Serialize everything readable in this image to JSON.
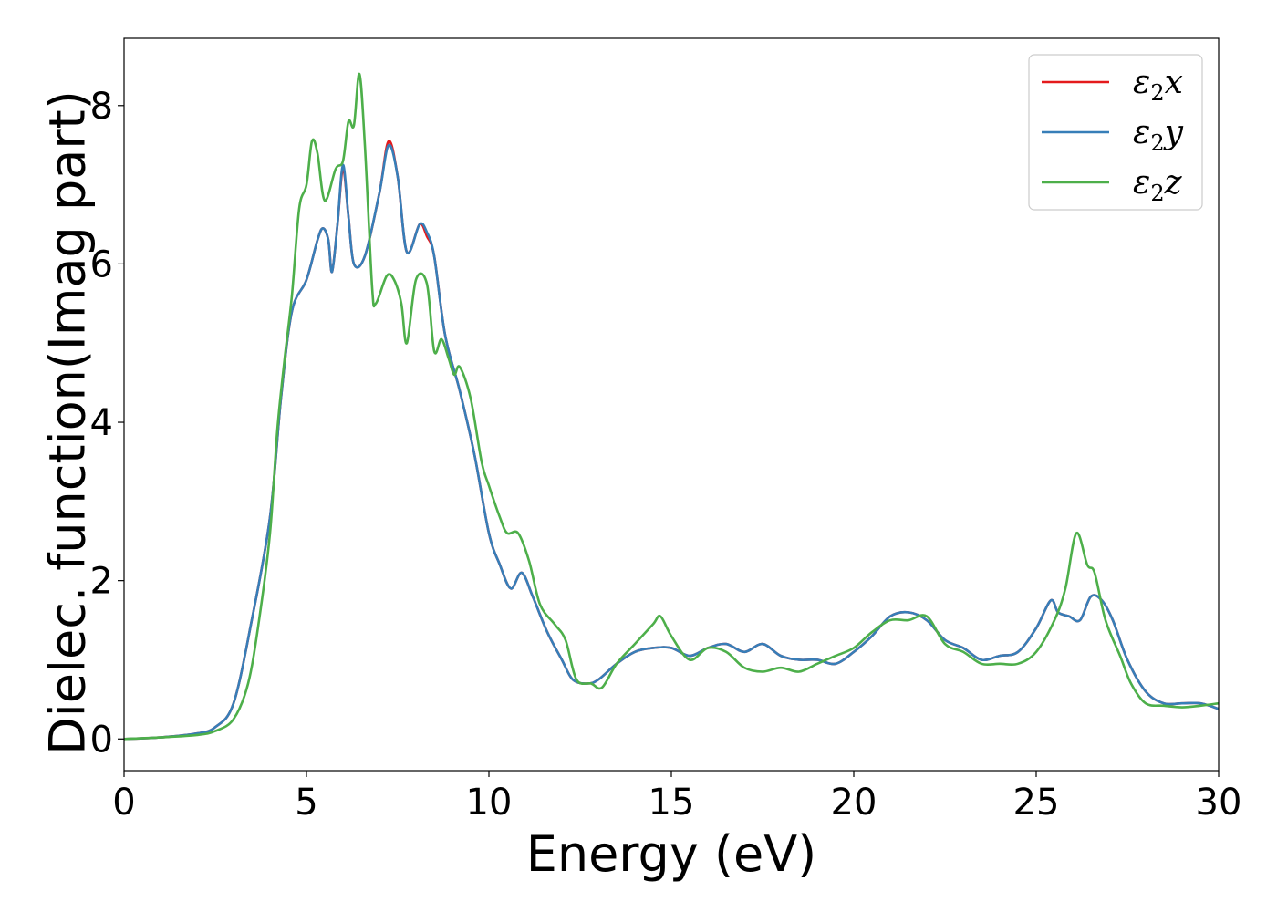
{
  "chart_data": {
    "type": "line",
    "xlabel": "Energy (eV)",
    "ylabel": "Dielec. function(Imag part)",
    "xlim": [
      0,
      30
    ],
    "ylim": [
      -0.4,
      8.85
    ],
    "x_ticks": [
      "0",
      "5",
      "10",
      "15",
      "20",
      "25",
      "30"
    ],
    "y_ticks": [
      "0",
      "2",
      "4",
      "6",
      "8"
    ],
    "x_tick_values": [
      0,
      5,
      10,
      15,
      20,
      25,
      30
    ],
    "y_tick_values": [
      0,
      2,
      4,
      6,
      8
    ],
    "grid": false,
    "legend_position": "top-right",
    "series": [
      {
        "name": "ε₂x",
        "legend": {
          "symbol": "ε",
          "sub": "2",
          "axis": "x"
        },
        "color": "#e41a1c",
        "points": [
          [
            0,
            0
          ],
          [
            1,
            0.02
          ],
          [
            2,
            0.07
          ],
          [
            2.5,
            0.15
          ],
          [
            3,
            0.45
          ],
          [
            3.5,
            1.5
          ],
          [
            4,
            2.8
          ],
          [
            4.3,
            4.3
          ],
          [
            4.6,
            5.4
          ],
          [
            5,
            5.8
          ],
          [
            5.3,
            6.3
          ],
          [
            5.45,
            6.45
          ],
          [
            5.6,
            6.3
          ],
          [
            5.7,
            5.9
          ],
          [
            5.85,
            6.5
          ],
          [
            6,
            7.2
          ],
          [
            6.15,
            6.6
          ],
          [
            6.3,
            6.0
          ],
          [
            6.6,
            6.1
          ],
          [
            7,
            6.9
          ],
          [
            7.25,
            7.55
          ],
          [
            7.5,
            7.1
          ],
          [
            7.75,
            6.15
          ],
          [
            8.1,
            6.5
          ],
          [
            8.3,
            6.35
          ],
          [
            8.5,
            6.1
          ],
          [
            8.8,
            5.1
          ],
          [
            9.2,
            4.4
          ],
          [
            9.6,
            3.6
          ],
          [
            10,
            2.6
          ],
          [
            10.3,
            2.2
          ],
          [
            10.6,
            1.9
          ],
          [
            10.9,
            2.1
          ],
          [
            11.2,
            1.8
          ],
          [
            11.6,
            1.35
          ],
          [
            12,
            1.0
          ],
          [
            12.3,
            0.75
          ],
          [
            12.7,
            0.7
          ],
          [
            13,
            0.75
          ],
          [
            13.5,
            0.95
          ],
          [
            14,
            1.1
          ],
          [
            14.5,
            1.15
          ],
          [
            15,
            1.15
          ],
          [
            15.5,
            1.05
          ],
          [
            16,
            1.15
          ],
          [
            16.5,
            1.2
          ],
          [
            17,
            1.1
          ],
          [
            17.5,
            1.2
          ],
          [
            18,
            1.05
          ],
          [
            18.5,
            1.0
          ],
          [
            19,
            1.0
          ],
          [
            19.5,
            0.95
          ],
          [
            20,
            1.1
          ],
          [
            20.5,
            1.3
          ],
          [
            21,
            1.55
          ],
          [
            21.5,
            1.6
          ],
          [
            22,
            1.5
          ],
          [
            22.5,
            1.25
          ],
          [
            23,
            1.15
          ],
          [
            23.5,
            1.0
          ],
          [
            24,
            1.05
          ],
          [
            24.5,
            1.1
          ],
          [
            25,
            1.4
          ],
          [
            25.4,
            1.75
          ],
          [
            25.6,
            1.6
          ],
          [
            25.9,
            1.55
          ],
          [
            26.2,
            1.5
          ],
          [
            26.5,
            1.8
          ],
          [
            26.8,
            1.75
          ],
          [
            27.1,
            1.5
          ],
          [
            27.5,
            1.0
          ],
          [
            28,
            0.6
          ],
          [
            28.5,
            0.45
          ],
          [
            29,
            0.45
          ],
          [
            29.5,
            0.45
          ],
          [
            30,
            0.38
          ]
        ]
      },
      {
        "name": "ε₂y",
        "legend": {
          "symbol": "ε",
          "sub": "2",
          "axis": "y"
        },
        "color": "#377eb8",
        "points": [
          [
            0,
            0
          ],
          [
            1,
            0.02
          ],
          [
            2,
            0.07
          ],
          [
            2.5,
            0.15
          ],
          [
            3,
            0.45
          ],
          [
            3.5,
            1.5
          ],
          [
            4,
            2.8
          ],
          [
            4.3,
            4.3
          ],
          [
            4.6,
            5.4
          ],
          [
            5,
            5.8
          ],
          [
            5.3,
            6.3
          ],
          [
            5.45,
            6.45
          ],
          [
            5.6,
            6.3
          ],
          [
            5.7,
            5.9
          ],
          [
            5.85,
            6.5
          ],
          [
            6,
            7.25
          ],
          [
            6.15,
            6.6
          ],
          [
            6.3,
            6.0
          ],
          [
            6.6,
            6.1
          ],
          [
            7,
            6.9
          ],
          [
            7.25,
            7.5
          ],
          [
            7.5,
            7.1
          ],
          [
            7.75,
            6.15
          ],
          [
            8.1,
            6.5
          ],
          [
            8.3,
            6.4
          ],
          [
            8.5,
            6.1
          ],
          [
            8.8,
            5.1
          ],
          [
            9.2,
            4.4
          ],
          [
            9.6,
            3.6
          ],
          [
            10,
            2.6
          ],
          [
            10.3,
            2.2
          ],
          [
            10.6,
            1.9
          ],
          [
            10.9,
            2.1
          ],
          [
            11.2,
            1.8
          ],
          [
            11.6,
            1.35
          ],
          [
            12,
            1.0
          ],
          [
            12.3,
            0.75
          ],
          [
            12.7,
            0.7
          ],
          [
            13,
            0.75
          ],
          [
            13.5,
            0.95
          ],
          [
            14,
            1.1
          ],
          [
            14.5,
            1.15
          ],
          [
            15,
            1.15
          ],
          [
            15.5,
            1.05
          ],
          [
            16,
            1.15
          ],
          [
            16.5,
            1.2
          ],
          [
            17,
            1.1
          ],
          [
            17.5,
            1.2
          ],
          [
            18,
            1.05
          ],
          [
            18.5,
            1.0
          ],
          [
            19,
            1.0
          ],
          [
            19.5,
            0.95
          ],
          [
            20,
            1.1
          ],
          [
            20.5,
            1.3
          ],
          [
            21,
            1.55
          ],
          [
            21.5,
            1.6
          ],
          [
            22,
            1.5
          ],
          [
            22.5,
            1.25
          ],
          [
            23,
            1.15
          ],
          [
            23.5,
            1.0
          ],
          [
            24,
            1.05
          ],
          [
            24.5,
            1.1
          ],
          [
            25,
            1.4
          ],
          [
            25.4,
            1.75
          ],
          [
            25.6,
            1.6
          ],
          [
            25.9,
            1.55
          ],
          [
            26.2,
            1.5
          ],
          [
            26.5,
            1.8
          ],
          [
            26.8,
            1.75
          ],
          [
            27.1,
            1.5
          ],
          [
            27.5,
            1.0
          ],
          [
            28,
            0.6
          ],
          [
            28.5,
            0.45
          ],
          [
            29,
            0.45
          ],
          [
            29.5,
            0.45
          ],
          [
            30,
            0.38
          ]
        ]
      },
      {
        "name": "ε₂z",
        "legend": {
          "symbol": "ε",
          "sub": "2",
          "axis": "z"
        },
        "color": "#4daf4a",
        "points": [
          [
            0,
            0
          ],
          [
            1,
            0.02
          ],
          [
            2,
            0.05
          ],
          [
            2.5,
            0.1
          ],
          [
            3,
            0.25
          ],
          [
            3.4,
            0.7
          ],
          [
            3.7,
            1.5
          ],
          [
            4,
            2.6
          ],
          [
            4.2,
            3.9
          ],
          [
            4.4,
            4.8
          ],
          [
            4.6,
            5.6
          ],
          [
            4.8,
            6.7
          ],
          [
            5,
            7.0
          ],
          [
            5.15,
            7.55
          ],
          [
            5.3,
            7.4
          ],
          [
            5.5,
            6.8
          ],
          [
            5.8,
            7.2
          ],
          [
            6,
            7.3
          ],
          [
            6.15,
            7.8
          ],
          [
            6.3,
            7.75
          ],
          [
            6.45,
            8.4
          ],
          [
            6.6,
            7.5
          ],
          [
            6.8,
            5.7
          ],
          [
            6.9,
            5.5
          ],
          [
            7.2,
            5.85
          ],
          [
            7.4,
            5.8
          ],
          [
            7.6,
            5.5
          ],
          [
            7.75,
            5.0
          ],
          [
            8,
            5.8
          ],
          [
            8.3,
            5.75
          ],
          [
            8.5,
            4.9
          ],
          [
            8.7,
            5.05
          ],
          [
            8.9,
            4.8
          ],
          [
            9.05,
            4.6
          ],
          [
            9.2,
            4.7
          ],
          [
            9.5,
            4.3
          ],
          [
            9.8,
            3.5
          ],
          [
            10,
            3.2
          ],
          [
            10.3,
            2.8
          ],
          [
            10.5,
            2.6
          ],
          [
            10.8,
            2.6
          ],
          [
            11.1,
            2.25
          ],
          [
            11.4,
            1.7
          ],
          [
            11.8,
            1.45
          ],
          [
            12.1,
            1.25
          ],
          [
            12.4,
            0.75
          ],
          [
            12.8,
            0.7
          ],
          [
            13.1,
            0.65
          ],
          [
            13.5,
            0.95
          ],
          [
            14,
            1.2
          ],
          [
            14.5,
            1.45
          ],
          [
            14.7,
            1.55
          ],
          [
            15,
            1.3
          ],
          [
            15.5,
            1.0
          ],
          [
            16,
            1.15
          ],
          [
            16.5,
            1.1
          ],
          [
            17,
            0.9
          ],
          [
            17.5,
            0.85
          ],
          [
            18,
            0.9
          ],
          [
            18.5,
            0.85
          ],
          [
            19,
            0.95
          ],
          [
            19.5,
            1.05
          ],
          [
            20,
            1.15
          ],
          [
            20.5,
            1.35
          ],
          [
            21,
            1.5
          ],
          [
            21.5,
            1.5
          ],
          [
            22,
            1.55
          ],
          [
            22.5,
            1.2
          ],
          [
            23,
            1.1
          ],
          [
            23.5,
            0.95
          ],
          [
            24,
            0.95
          ],
          [
            24.5,
            0.95
          ],
          [
            25,
            1.1
          ],
          [
            25.5,
            1.5
          ],
          [
            25.8,
            1.9
          ],
          [
            26.1,
            2.6
          ],
          [
            26.4,
            2.2
          ],
          [
            26.6,
            2.1
          ],
          [
            26.9,
            1.5
          ],
          [
            27.3,
            1.05
          ],
          [
            27.6,
            0.7
          ],
          [
            28,
            0.45
          ],
          [
            28.5,
            0.42
          ],
          [
            29,
            0.4
          ],
          [
            29.5,
            0.42
          ],
          [
            30,
            0.45
          ]
        ]
      }
    ]
  }
}
